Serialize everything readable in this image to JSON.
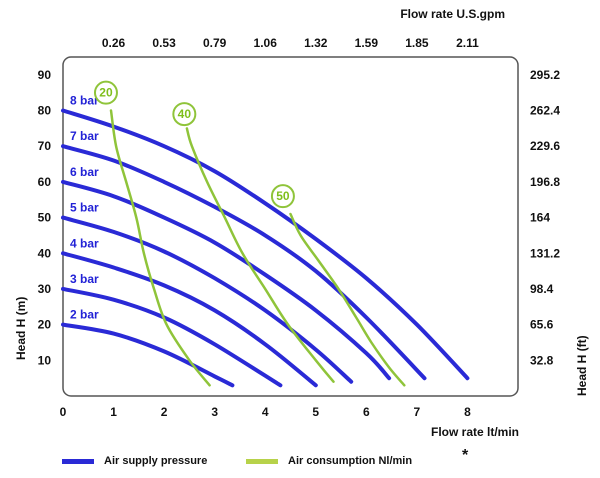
{
  "chart_data": {
    "type": "line",
    "xlabel": "Flow rate  lt/min",
    "x2label": "Flow rate U.S.gpm",
    "ylabel": "Head H (m)",
    "y2label": "Head H (ft)",
    "xlim": [
      0,
      9
    ],
    "ylim": [
      0,
      95
    ],
    "grid": "dotted",
    "x_ticks": [
      0,
      1,
      2,
      3,
      4,
      5,
      6,
      7,
      8
    ],
    "y_ticks": [
      10,
      20,
      30,
      40,
      50,
      60,
      70,
      80,
      90
    ],
    "top_ticks": [
      {
        "x": 1,
        "label": "0.26"
      },
      {
        "x": 2,
        "label": "0.53"
      },
      {
        "x": 3,
        "label": "0.79"
      },
      {
        "x": 4,
        "label": "1.06"
      },
      {
        "x": 5,
        "label": "1.32"
      },
      {
        "x": 6,
        "label": "1.59"
      },
      {
        "x": 7,
        "label": "1.85"
      },
      {
        "x": 8,
        "label": "2.11"
      }
    ],
    "right_ticks": [
      {
        "y": 10,
        "label": "32.8"
      },
      {
        "y": 20,
        "label": "65.6"
      },
      {
        "y": 30,
        "label": "98.4"
      },
      {
        "y": 40,
        "label": "131.2"
      },
      {
        "y": 50,
        "label": "164"
      },
      {
        "y": 60,
        "label": "196.8"
      },
      {
        "y": 70,
        "label": "229.6"
      },
      {
        "y": 80,
        "label": "262.4"
      },
      {
        "y": 90,
        "label": "295.2"
      }
    ],
    "pressure_series": [
      {
        "name": "8 bar",
        "color": "#2a2ad6",
        "points": [
          [
            0,
            80
          ],
          [
            1,
            75.5
          ],
          [
            2,
            70
          ],
          [
            3,
            63
          ],
          [
            4,
            54
          ],
          [
            5,
            44
          ],
          [
            6,
            33
          ],
          [
            7,
            20
          ],
          [
            8,
            5
          ]
        ]
      },
      {
        "name": "7 bar",
        "color": "#2a2ad6",
        "points": [
          [
            0,
            70
          ],
          [
            1,
            66
          ],
          [
            2,
            60
          ],
          [
            3,
            53
          ],
          [
            4,
            45
          ],
          [
            5,
            35
          ],
          [
            6,
            22
          ],
          [
            7.15,
            5
          ]
        ]
      },
      {
        "name": "6 bar",
        "color": "#2a2ad6",
        "points": [
          [
            0,
            60
          ],
          [
            1,
            56
          ],
          [
            2,
            50
          ],
          [
            3,
            43
          ],
          [
            4,
            34
          ],
          [
            5,
            24
          ],
          [
            6,
            12
          ],
          [
            6.45,
            5
          ]
        ]
      },
      {
        "name": "5 bar",
        "color": "#2a2ad6",
        "points": [
          [
            0,
            50
          ],
          [
            1,
            46
          ],
          [
            2,
            40.5
          ],
          [
            3,
            33
          ],
          [
            4,
            24
          ],
          [
            5,
            13
          ],
          [
            5.7,
            4
          ]
        ]
      },
      {
        "name": "4 bar",
        "color": "#2a2ad6",
        "points": [
          [
            0,
            40
          ],
          [
            1,
            36
          ],
          [
            2,
            31
          ],
          [
            3,
            24
          ],
          [
            4,
            14.5
          ],
          [
            5,
            3
          ]
        ]
      },
      {
        "name": "3 bar",
        "color": "#2a2ad6",
        "points": [
          [
            0,
            30
          ],
          [
            1,
            27
          ],
          [
            2,
            22
          ],
          [
            3,
            14.5
          ],
          [
            4.3,
            3
          ]
        ]
      },
      {
        "name": "2 bar",
        "color": "#2a2ad6",
        "points": [
          [
            0,
            20
          ],
          [
            1,
            17.5
          ],
          [
            2,
            12.5
          ],
          [
            3,
            5.5
          ],
          [
            3.35,
            3
          ]
        ]
      }
    ],
    "air_series": [
      {
        "name": "20",
        "color": "#8fc43a",
        "label_at": [
          0.85,
          85
        ],
        "points": [
          [
            0.95,
            80
          ],
          [
            1.05,
            70
          ],
          [
            1.25,
            60
          ],
          [
            1.45,
            50
          ],
          [
            1.6,
            40
          ],
          [
            1.8,
            30
          ],
          [
            2.05,
            20
          ],
          [
            2.5,
            10
          ],
          [
            2.9,
            3
          ]
        ]
      },
      {
        "name": "40",
        "color": "#8fc43a",
        "label_at": [
          2.4,
          79
        ],
        "points": [
          [
            2.45,
            75
          ],
          [
            2.55,
            70
          ],
          [
            2.85,
            60
          ],
          [
            3.2,
            50
          ],
          [
            3.55,
            40
          ],
          [
            4.0,
            30
          ],
          [
            4.45,
            20
          ],
          [
            5.0,
            10
          ],
          [
            5.35,
            4
          ]
        ]
      },
      {
        "name": "50",
        "color": "#8fc43a",
        "label_at": [
          4.35,
          56
        ],
        "points": [
          [
            4.5,
            51
          ],
          [
            4.7,
            45
          ],
          [
            5.05,
            38
          ],
          [
            5.45,
            30
          ],
          [
            5.8,
            22
          ],
          [
            6.1,
            15
          ],
          [
            6.45,
            8
          ],
          [
            6.75,
            3
          ]
        ]
      }
    ],
    "legend": [
      {
        "label": "Air supply pressure",
        "color": "#2a2ad6"
      },
      {
        "label": "Air consumption  Nl/min",
        "color": "#b7d24a"
      }
    ],
    "footnote": "*"
  }
}
